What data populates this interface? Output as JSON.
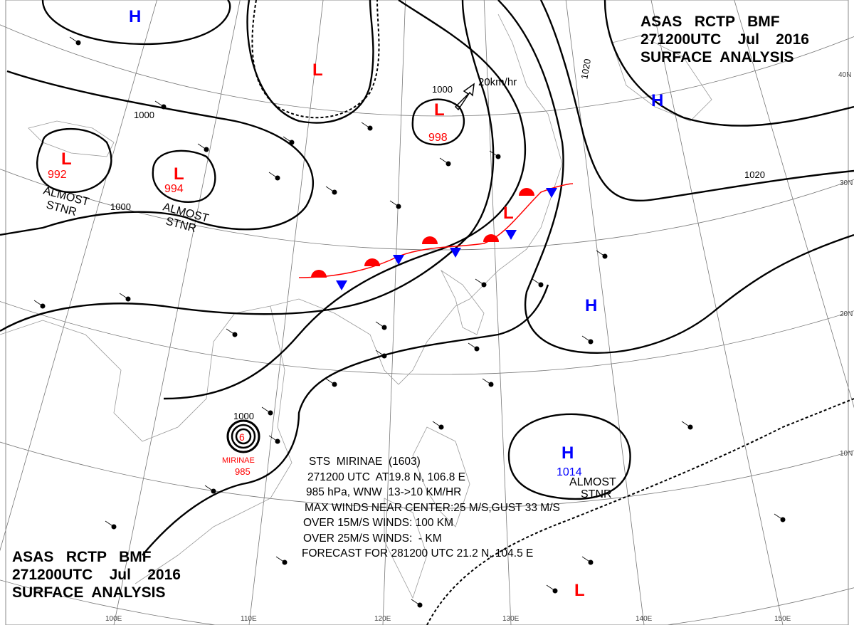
{
  "map": {
    "type": "surface-analysis",
    "header_top_right": {
      "line1": "ASAS   RCTP   BMF",
      "line2": "271200UTC    Jul    2016",
      "line3": "SURFACE  ANALYSIS"
    },
    "header_bottom_left": {
      "line1": "ASAS   RCTP   BMF",
      "line2": "271200UTC    Jul    2016",
      "line3": "SURFACE  ANALYSIS"
    },
    "latitude_labels": [
      "40N",
      "30N",
      "20N",
      "10N"
    ],
    "longitude_labels": [
      "100E",
      "110E",
      "120E",
      "130E",
      "140E",
      "150E"
    ],
    "colors": {
      "high": "#0000ff",
      "low": "#ff0000",
      "isobar": "#000000",
      "warm_front": "#ff0000",
      "cold_front": "#0000ff"
    },
    "pressure_centers": [
      {
        "kind": "H",
        "value": "",
        "note": ""
      },
      {
        "kind": "L",
        "value": "",
        "note": ""
      },
      {
        "kind": "L",
        "value": "992",
        "note": "ALMOST STNR"
      },
      {
        "kind": "L",
        "value": "994",
        "note": "ALMOST STNR"
      },
      {
        "kind": "L",
        "value": "998",
        "note": ""
      },
      {
        "kind": "H",
        "value": "",
        "note": ""
      },
      {
        "kind": "L",
        "value": "",
        "note": ""
      },
      {
        "kind": "H",
        "value": "",
        "note": ""
      },
      {
        "kind": "H",
        "value": "1014",
        "note": "ALMOST STNR"
      },
      {
        "kind": "L",
        "value": "",
        "note": ""
      }
    ],
    "isobar_labels": [
      "1000",
      "1000",
      "1020",
      "1020",
      "1000",
      "1000"
    ],
    "motion_arrow": {
      "label": "20km/hr"
    },
    "typhoon": {
      "name_label": "MIRINAE",
      "pressure": "985",
      "isobar": "1000",
      "bulletin": [
        "STS  MIRINAE  (1603)",
        "271200 UTC  AT19.8 N, 106.8 E",
        "985 hPa, WNW  13->10 KM/HR",
        "MAX WINDS NEAR CENTER:25 M/S,GUST 33 M/S",
        "OVER 15M/S WINDS: 100 KM",
        "OVER 25M/S WINDS:  - KM",
        "FORECAST FOR 281200 UTC 21.2 N, 104.5 E"
      ]
    }
  }
}
